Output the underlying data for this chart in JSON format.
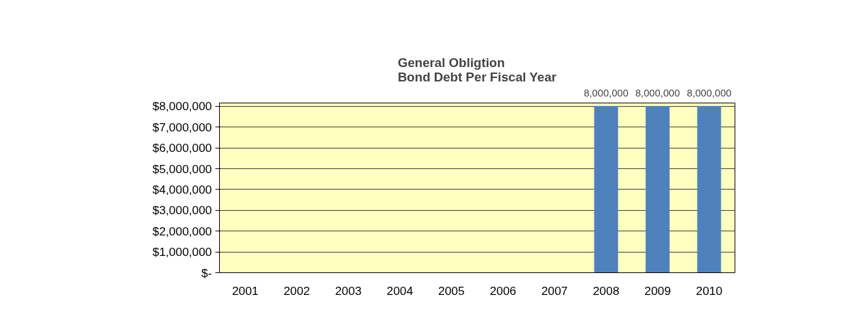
{
  "chart_data": {
    "type": "bar",
    "title": "General Obligtion\nBond Debt Per Fiscal Year",
    "categories": [
      "2001",
      "2002",
      "2003",
      "2004",
      "2005",
      "2006",
      "2007",
      "2008",
      "2009",
      "2010"
    ],
    "values": [
      0,
      0,
      0,
      0,
      0,
      0,
      0,
      8000000,
      8000000,
      8000000
    ],
    "value_labels": [
      null,
      null,
      null,
      null,
      null,
      null,
      null,
      "8,000,000",
      "8,000,000",
      "8,000,000"
    ],
    "color": "#4f81bd",
    "ylim": [
      0,
      8000000
    ],
    "yticks": [
      {
        "value": 0,
        "label": "$-"
      },
      {
        "value": 1000000,
        "label": "$1,000,000"
      },
      {
        "value": 2000000,
        "label": "$2,000,000"
      },
      {
        "value": 3000000,
        "label": "$3,000,000"
      },
      {
        "value": 4000000,
        "label": "$4,000,000"
      },
      {
        "value": 5000000,
        "label": "$5,000,000"
      },
      {
        "value": 6000000,
        "label": "$6,000,000"
      },
      {
        "value": 7000000,
        "label": "$7,000,000"
      },
      {
        "value": 8000000,
        "label": "$8,000,000"
      }
    ],
    "grid": "y"
  }
}
